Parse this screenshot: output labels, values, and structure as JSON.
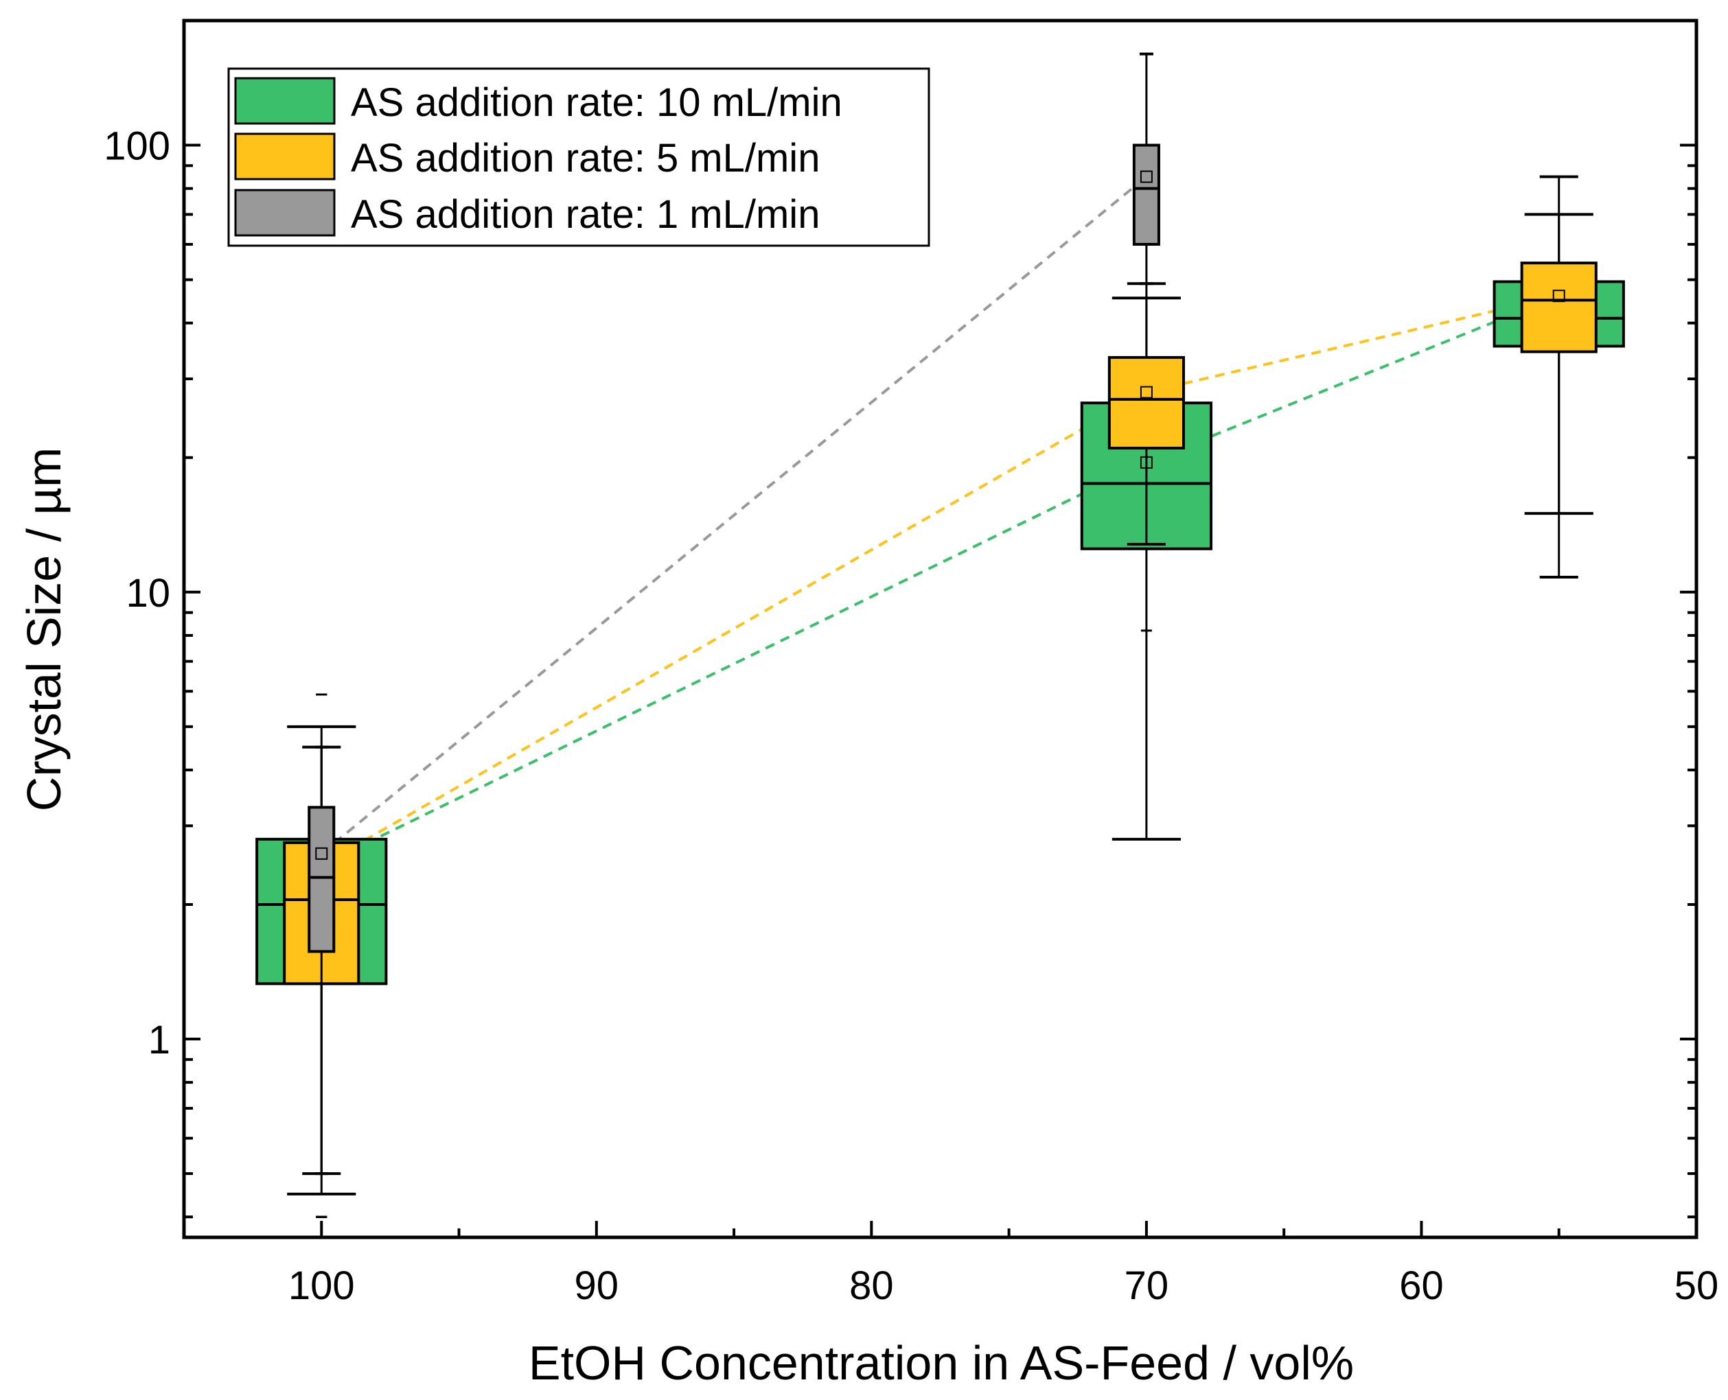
{
  "chart_data": {
    "type": "box",
    "xlabel": "EtOH Concentration in AS-Feed / vol%",
    "ylabel": "Crystal Size / µm",
    "xlim": [
      105,
      50
    ],
    "ylim": [
      0.36,
      190
    ],
    "yscale": "log",
    "xticks": [
      100,
      90,
      80,
      70,
      60,
      50
    ],
    "xtick_labels": [
      "100",
      "90",
      "80",
      "70",
      "60",
      "50"
    ],
    "yticks": [
      1,
      10,
      100
    ],
    "ytick_labels": [
      "1",
      "10",
      "100"
    ],
    "legend_position": "top-left",
    "series": [
      {
        "name": "AS addition rate: 10 mL/min",
        "color": "#3cbf6b",
        "line_color": "#3cbf6b",
        "box_width": 4.7,
        "cap_half_width": 1.25,
        "points": [
          {
            "x": 100,
            "q1": 1.33,
            "median": 2.0,
            "q3": 2.8,
            "mean": 2.45,
            "whisker_low": 0.45,
            "whisker_high": 5.0,
            "min": 0.4,
            "max": 5.9
          },
          {
            "x": 70,
            "q1": 12.5,
            "median": 17.5,
            "q3": 26.5,
            "mean": 19.5,
            "whisker_low": 2.8,
            "whisker_high": 45.5,
            "min": 2.8,
            "max": 45.5
          },
          {
            "x": 55,
            "q1": 35.5,
            "median": 41.0,
            "q3": 49.5,
            "mean": 46.0,
            "whisker_low": 15.0,
            "whisker_high": 70.0,
            "min": 15.0,
            "max": 70.0
          }
        ]
      },
      {
        "name": "AS addition rate: 5 mL/min",
        "color": "#ffc21a",
        "line_color": "#ffc21a",
        "box_width": 2.7,
        "cap_half_width": 0.7,
        "points": [
          {
            "x": 100,
            "q1": 1.33,
            "median": 2.05,
            "q3": 2.75,
            "mean": 2.45,
            "whisker_low": 0.5,
            "whisker_high": 4.5,
            "min": 0.4,
            "max": 5.9
          },
          {
            "x": 70,
            "q1": 21.0,
            "median": 27.0,
            "q3": 33.5,
            "mean": 28.0,
            "whisker_low": 12.8,
            "whisker_high": 49.0,
            "min": 8.2,
            "max": 49.0
          },
          {
            "x": 55,
            "q1": 34.5,
            "median": 45.0,
            "q3": 54.5,
            "mean": 46.0,
            "whisker_low": 10.8,
            "whisker_high": 85.0,
            "min": 10.8,
            "max": 85.0
          }
        ]
      },
      {
        "name": "AS addition rate: 1 mL/min",
        "color": "#999999",
        "line_color": "#999999",
        "box_width": 0.9,
        "cap_half_width": 0.25,
        "points": [
          {
            "x": 100,
            "q1": 1.57,
            "median": 2.3,
            "q3": 3.3,
            "mean": 2.6,
            "whisker_low": 0.5,
            "whisker_high": 4.5,
            "min": 0.4,
            "max": 5.9
          },
          {
            "x": 70,
            "q1": 60.0,
            "median": 80.0,
            "q3": 100.0,
            "mean": 85.0,
            "whisker_low": 49.0,
            "whisker_high": 160.0,
            "min": 49.0,
            "max": 160.0
          }
        ]
      }
    ]
  }
}
